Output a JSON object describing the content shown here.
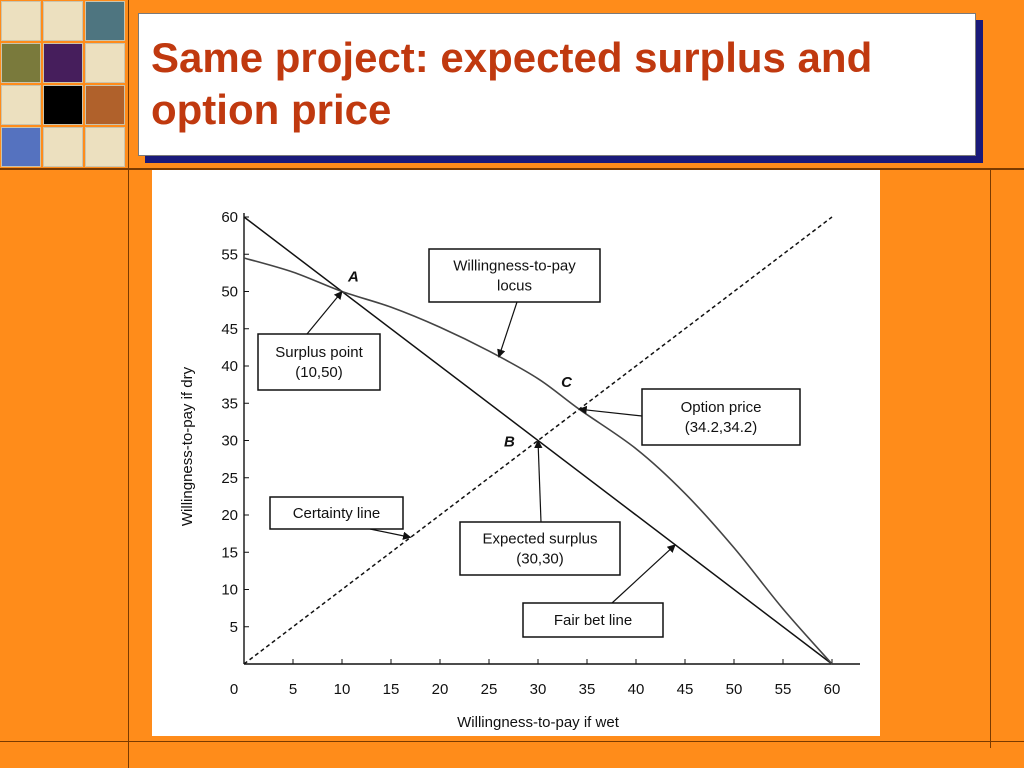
{
  "slide": {
    "title": "Same project: expected surplus and option price"
  },
  "deco_colors": {
    "cream": "#ece0bf",
    "slate": "#4e7580",
    "olive": "#7a7a3c",
    "purple": "#461e5c",
    "black": "#000000",
    "rust": "#b0612b",
    "blue": "#5572bf",
    "title_red": "#c0390f",
    "shadow_navy": "#1a1a7a",
    "background_orange": "#ff8c1a"
  },
  "chart_data": {
    "type": "line",
    "xlabel": "Willingness-to-pay if wet",
    "ylabel": "Willingness-to-pay if dry",
    "xlim": [
      0,
      60
    ],
    "ylim": [
      0,
      60
    ],
    "xticks": [
      0,
      5,
      10,
      15,
      20,
      25,
      30,
      35,
      40,
      45,
      50,
      55,
      60
    ],
    "yticks": [
      5,
      10,
      15,
      20,
      25,
      30,
      35,
      40,
      45,
      50,
      55,
      60
    ],
    "grid": false,
    "series": [
      {
        "key": "fair-bet-line",
        "style": "solid",
        "points": [
          [
            0,
            60
          ],
          [
            60,
            0
          ]
        ]
      },
      {
        "key": "certainty-line",
        "style": "dashed",
        "points": [
          [
            0,
            0
          ],
          [
            60,
            60
          ]
        ]
      },
      {
        "key": "wtp-locus",
        "style": "solid",
        "points": [
          [
            0,
            54.5
          ],
          [
            5,
            52.6
          ],
          [
            10,
            50
          ],
          [
            15,
            47.9
          ],
          [
            20,
            45.2
          ],
          [
            25,
            42
          ],
          [
            30,
            38.3
          ],
          [
            34.2,
            34.2
          ],
          [
            40,
            28.9
          ],
          [
            45,
            22.9
          ],
          [
            50,
            15.6
          ],
          [
            55,
            7.4
          ],
          [
            60,
            0
          ]
        ]
      }
    ],
    "points": [
      {
        "label": "A",
        "x": 10,
        "y": 50
      },
      {
        "label": "B",
        "x": 30,
        "y": 30
      },
      {
        "label": "C",
        "x": 34.2,
        "y": 34.2
      }
    ],
    "annotations": [
      {
        "key": "wtp-locus-callout",
        "lines": [
          "Willingness-to-pay",
          "locus"
        ],
        "target": [
          26,
          41.2
        ]
      },
      {
        "key": "surplus-point-callout",
        "lines": [
          "Surplus point",
          "(10,50)"
        ],
        "target": [
          10,
          50
        ]
      },
      {
        "key": "option-price-callout",
        "lines": [
          "Option price",
          "(34.2,34.2)"
        ],
        "target": [
          34.2,
          34.2
        ]
      },
      {
        "key": "certainty-line-callout",
        "lines": [
          "Certainty line"
        ],
        "target": [
          17,
          17
        ]
      },
      {
        "key": "expected-surplus-callout",
        "lines": [
          "Expected surplus",
          "(30,30)"
        ],
        "target": [
          30,
          30
        ]
      },
      {
        "key": "fair-bet-line-callout",
        "lines": [
          "Fair bet line"
        ],
        "target": [
          44,
          16
        ]
      }
    ]
  }
}
